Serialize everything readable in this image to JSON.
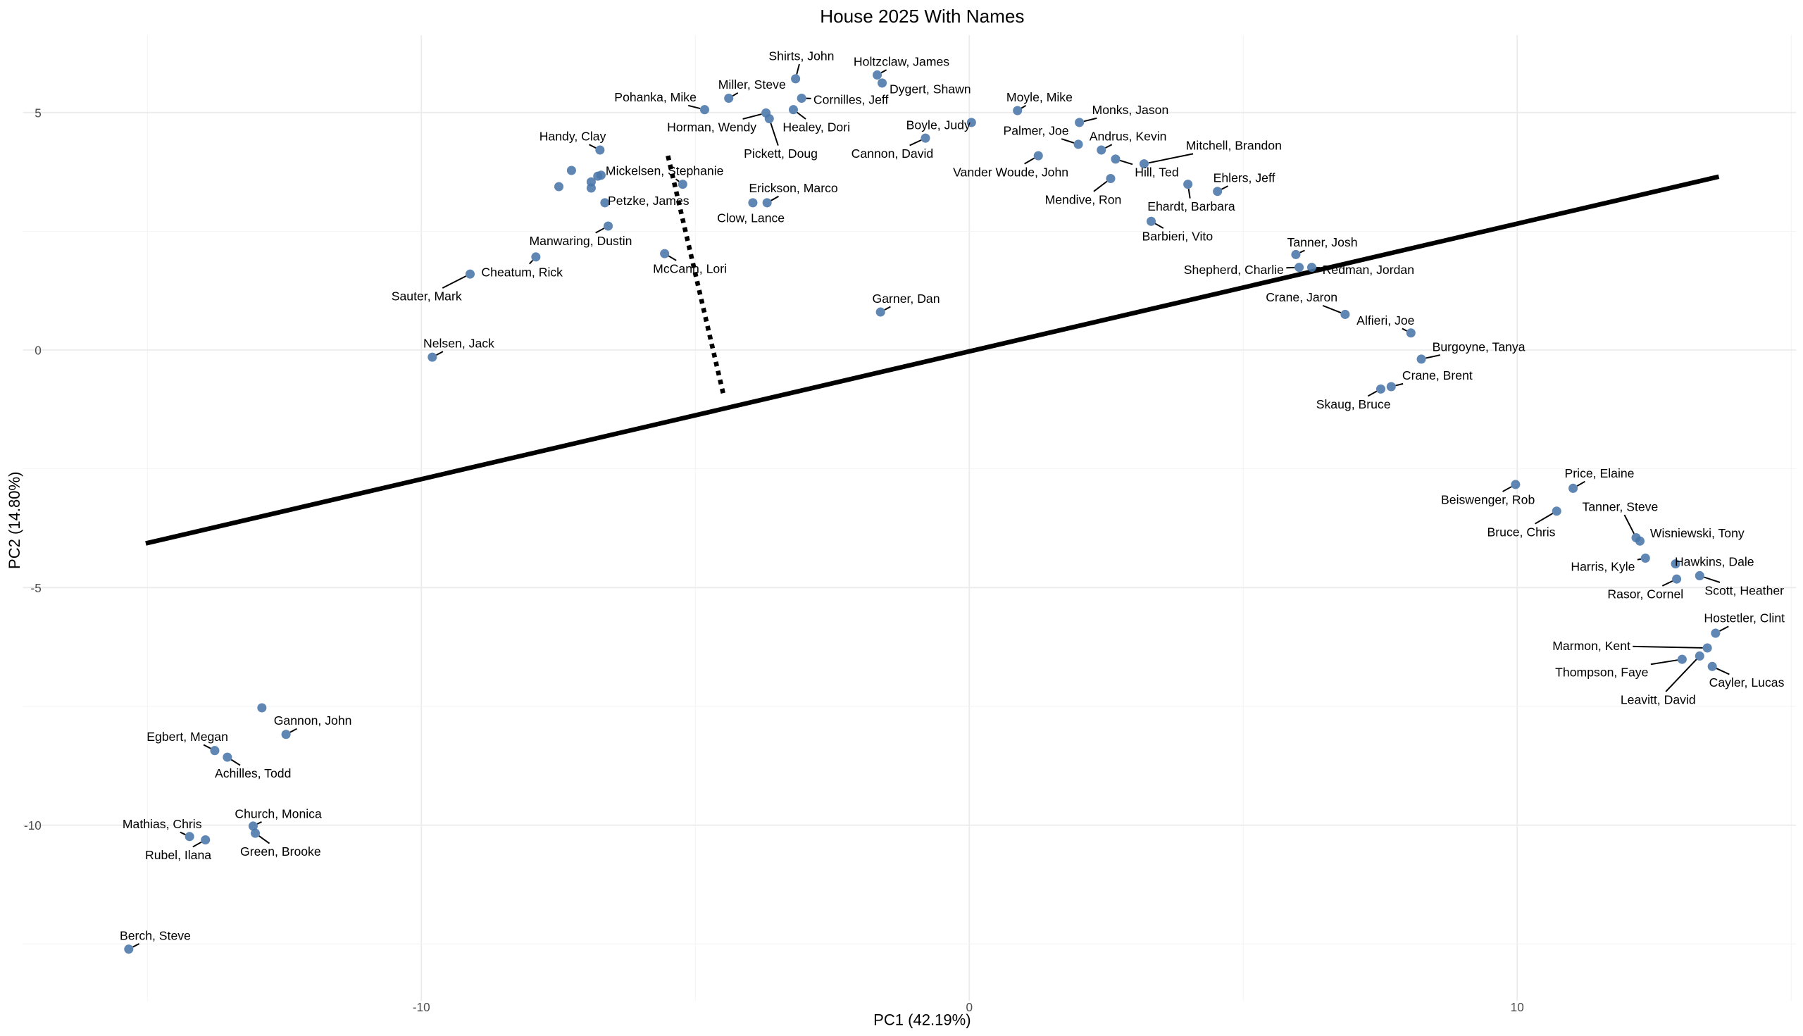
{
  "chart_data": {
    "type": "scatter",
    "title": "House 2025 With Names",
    "xlabel": "PC1 (42.19%)",
    "ylabel": "PC2 (14.80%)",
    "xlim": [
      -17.27,
      15.09
    ],
    "ylim": [
      -13.7,
      6.63
    ],
    "xticks": [
      -10,
      0,
      10
    ],
    "yticks": [
      5,
      0,
      -5,
      -10
    ],
    "grid": true,
    "point_color": "#4a76aa",
    "points": [
      {
        "name": "Shirts, John",
        "x": -3.17,
        "y": 5.71
      },
      {
        "name": "Holtzclaw, James",
        "x": -1.68,
        "y": 5.79
      },
      {
        "name": "Dygert, Shawn",
        "x": -1.59,
        "y": 5.62
      },
      {
        "name": "Miller, Steve",
        "x": -4.39,
        "y": 5.3
      },
      {
        "name": "Cornilles, Jeff",
        "x": -3.06,
        "y": 5.3
      },
      {
        "name": "Pohanka, Mike",
        "x": -4.83,
        "y": 5.06
      },
      {
        "name": "Horman, Wendy",
        "x": -3.71,
        "y": 4.99
      },
      {
        "name": "Pickett, Doug",
        "x": -3.65,
        "y": 4.87
      },
      {
        "name": "Healey, Dori",
        "x": -3.21,
        "y": 5.06
      },
      {
        "name": "Boyle, Judy",
        "x": 0.04,
        "y": 4.79
      },
      {
        "name": "Cannon, David",
        "x": -0.8,
        "y": 4.46
      },
      {
        "name": "Moyle, Mike",
        "x": 0.88,
        "y": 5.04
      },
      {
        "name": "Monks, Jason",
        "x": 2.01,
        "y": 4.79
      },
      {
        "name": "Palmer, Joe",
        "x": 1.99,
        "y": 4.33
      },
      {
        "name": "Andrus, Kevin",
        "x": 2.41,
        "y": 4.21
      },
      {
        "name": "Mitchell, Brandon",
        "x": 3.19,
        "y": 3.92
      },
      {
        "name": "Hill, Ted",
        "x": 2.67,
        "y": 4.02
      },
      {
        "name": "Vander Woude, John",
        "x": 1.26,
        "y": 4.09
      },
      {
        "name": "Mendive, Ron",
        "x": 2.58,
        "y": 3.61
      },
      {
        "name": "Ehlers, Jeff",
        "x": 4.53,
        "y": 3.34
      },
      {
        "name": "Ehardt, Barbara",
        "x": 3.99,
        "y": 3.49
      },
      {
        "name": "Barbieri, Vito",
        "x": 3.32,
        "y": 2.71
      },
      {
        "name": "Tanner, Josh",
        "x": 5.96,
        "y": 2.01
      },
      {
        "name": "Shepherd, Charlie",
        "x": 6.02,
        "y": 1.74
      },
      {
        "name": "Redman, Jordan",
        "x": 6.25,
        "y": 1.74
      },
      {
        "name": "Crane, Jaron",
        "x": 6.86,
        "y": 0.75
      },
      {
        "name": "Alfieri, Joe",
        "x": 8.06,
        "y": 0.36
      },
      {
        "name": "Burgoyne, Tanya",
        "x": 8.25,
        "y": -0.19
      },
      {
        "name": "Crane, Brent",
        "x": 7.7,
        "y": -0.77
      },
      {
        "name": "Skaug, Bruce",
        "x": 7.51,
        "y": -0.82
      },
      {
        "name": "Garner, Dan",
        "x": -1.62,
        "y": 0.8
      },
      {
        "name": "Handy, Clay",
        "x": -6.74,
        "y": 4.21
      },
      {
        "name": "Mickelsen, Stephanie",
        "x": -5.23,
        "y": 3.49
      },
      {
        "name": "Petzke, James",
        "x": -6.65,
        "y": 3.1
      },
      {
        "name": "Manwaring, Dustin",
        "x": -6.59,
        "y": 2.61
      },
      {
        "name": "Erickson, Marco",
        "x": -3.69,
        "y": 3.1
      },
      {
        "name": "Clow, Lance",
        "x": -3.95,
        "y": 3.1
      },
      {
        "name": "McCann, Lori",
        "x": -5.56,
        "y": 2.03
      },
      {
        "name": "Cheatum, Rick",
        "x": -7.91,
        "y": 1.96
      },
      {
        "name": "Sauter, Mark",
        "x": -9.11,
        "y": 1.6
      },
      {
        "name": "Nelsen, Jack",
        "x": -9.8,
        "y": -0.15
      },
      {
        "name": "Gannon, John",
        "x": -12.47,
        "y": -8.09
      },
      {
        "name": "Egbert, Megan",
        "x": -13.77,
        "y": -8.43
      },
      {
        "name": "Achilles, Todd",
        "x": -13.54,
        "y": -8.57
      },
      {
        "name": "Church, Monica",
        "x": -13.07,
        "y": -10.02
      },
      {
        "name": "Green, Brooke",
        "x": -13.03,
        "y": -10.17
      },
      {
        "name": "Mathias, Chris",
        "x": -14.23,
        "y": -10.24
      },
      {
        "name": "Rubel, Ilana",
        "x": -13.94,
        "y": -10.31
      },
      {
        "name": "Berch, Steve",
        "x": -15.34,
        "y": -12.61
      },
      {
        "name": "Beiswenger, Rob",
        "x": 9.97,
        "y": -2.83
      },
      {
        "name": "Price, Elaine",
        "x": 11.02,
        "y": -2.91
      },
      {
        "name": "Bruce, Chris",
        "x": 10.72,
        "y": -3.39
      },
      {
        "name": "Tanner, Steve",
        "x": 12.17,
        "y": -3.95
      },
      {
        "name": "Wisniewski, Tony",
        "x": 12.24,
        "y": -4.02
      },
      {
        "name": "Harris, Kyle",
        "x": 12.34,
        "y": -4.38
      },
      {
        "name": "Hawkins, Dale",
        "x": 12.89,
        "y": -4.5
      },
      {
        "name": "Rasor, Cornel",
        "x": 12.91,
        "y": -4.82
      },
      {
        "name": "Scott, Heather",
        "x": 13.33,
        "y": -4.75
      },
      {
        "name": "Hostetler, Clint",
        "x": 13.62,
        "y": -5.96
      },
      {
        "name": "Marmon, Kent",
        "x": 13.47,
        "y": -6.27
      },
      {
        "name": "Thompson, Faye",
        "x": 13.01,
        "y": -6.51
      },
      {
        "name": "Leavitt, David",
        "x": 13.33,
        "y": -6.44
      },
      {
        "name": "Cayler, Lucas",
        "x": 13.56,
        "y": -6.66
      },
      {
        "name": "",
        "x": -7.26,
        "y": 3.78
      },
      {
        "name": "",
        "x": -7.49,
        "y": 3.44
      },
      {
        "name": "",
        "x": -6.9,
        "y": 3.54
      },
      {
        "name": "",
        "x": -6.9,
        "y": 3.41
      },
      {
        "name": "",
        "x": -6.78,
        "y": 3.66
      },
      {
        "name": "",
        "x": -6.72,
        "y": 3.68
      },
      {
        "name": "",
        "x": -12.91,
        "y": -7.53
      }
    ],
    "lines": [
      {
        "name": "solid",
        "style": "solid",
        "x": [
          -15.03,
          13.68
        ],
        "y": [
          -4.07,
          3.65
        ]
      },
      {
        "name": "dotted",
        "style": "dotted",
        "x": [
          -5.5,
          -4.49
        ],
        "y": [
          4.09,
          -0.92
        ]
      }
    ]
  }
}
